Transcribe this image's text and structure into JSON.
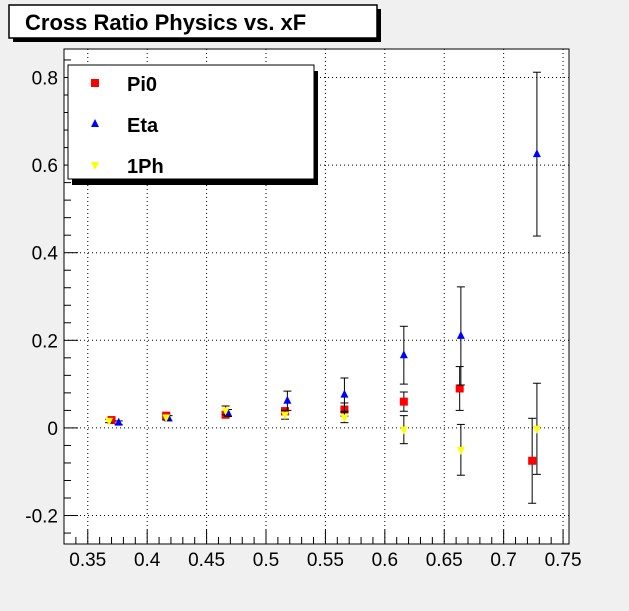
{
  "title": "Cross Ratio Physics vs. xF",
  "chart_data": {
    "type": "scatter",
    "title": "Cross Ratio Physics vs. xF",
    "xlabel": "",
    "ylabel": "",
    "xlim": [
      0.33,
      0.755
    ],
    "ylim": [
      -0.265,
      0.865
    ],
    "grid": true,
    "legend_position": "top-left",
    "x_ticks": [
      0.35,
      0.4,
      0.45,
      0.5,
      0.55,
      0.6,
      0.65,
      0.7,
      0.75
    ],
    "x_tick_labels": [
      "0.35",
      "0.4",
      "0.45",
      "0.5",
      "0.55",
      "0.6",
      "0.65",
      "0.7",
      "0.75"
    ],
    "y_ticks": [
      -0.2,
      0,
      0.2,
      0.4,
      0.6,
      0.8
    ],
    "y_tick_labels": [
      "-0.2",
      "0",
      "0.2",
      "0.4",
      "0.6",
      "0.8"
    ],
    "series": [
      {
        "name": "Pi0",
        "marker": "square",
        "color": "#ff0000",
        "points": [
          {
            "x": 0.37,
            "y": 0.018,
            "err": 0.004
          },
          {
            "x": 0.416,
            "y": 0.028,
            "err": 0.005
          },
          {
            "x": 0.466,
            "y": 0.03,
            "err": 0.006
          },
          {
            "x": 0.516,
            "y": 0.038,
            "err": 0.008
          },
          {
            "x": 0.566,
            "y": 0.042,
            "err": 0.015
          },
          {
            "x": 0.616,
            "y": 0.06,
            "err": 0.022
          },
          {
            "x": 0.663,
            "y": 0.09,
            "err": 0.05
          },
          {
            "x": 0.724,
            "y": -0.075,
            "err": 0.097
          }
        ]
      },
      {
        "name": "Eta",
        "marker": "triangle-up",
        "color": "#0000ff",
        "points": [
          {
            "x": 0.376,
            "y": 0.012,
            "err": 0.004
          },
          {
            "x": 0.418,
            "y": 0.022,
            "err": 0.006
          },
          {
            "x": 0.468,
            "y": 0.034,
            "err": 0.008
          },
          {
            "x": 0.518,
            "y": 0.062,
            "err": 0.022
          },
          {
            "x": 0.566,
            "y": 0.076,
            "err": 0.038
          },
          {
            "x": 0.616,
            "y": 0.166,
            "err": 0.066
          },
          {
            "x": 0.664,
            "y": 0.21,
            "err": 0.112
          },
          {
            "x": 0.728,
            "y": 0.625,
            "err": 0.187
          }
        ]
      },
      {
        "name": "1Ph",
        "marker": "triangle-down",
        "color": "#ffff00",
        "points": [
          {
            "x": 0.368,
            "y": 0.016,
            "err": 0.004
          },
          {
            "x": 0.416,
            "y": 0.024,
            "err": 0.006
          },
          {
            "x": 0.466,
            "y": 0.04,
            "err": 0.01
          },
          {
            "x": 0.516,
            "y": 0.03,
            "err": 0.01
          },
          {
            "x": 0.566,
            "y": 0.024,
            "err": 0.012
          },
          {
            "x": 0.616,
            "y": -0.004,
            "err": 0.032
          },
          {
            "x": 0.664,
            "y": -0.05,
            "err": 0.058
          },
          {
            "x": 0.728,
            "y": -0.002,
            "err": 0.104
          }
        ]
      }
    ]
  }
}
